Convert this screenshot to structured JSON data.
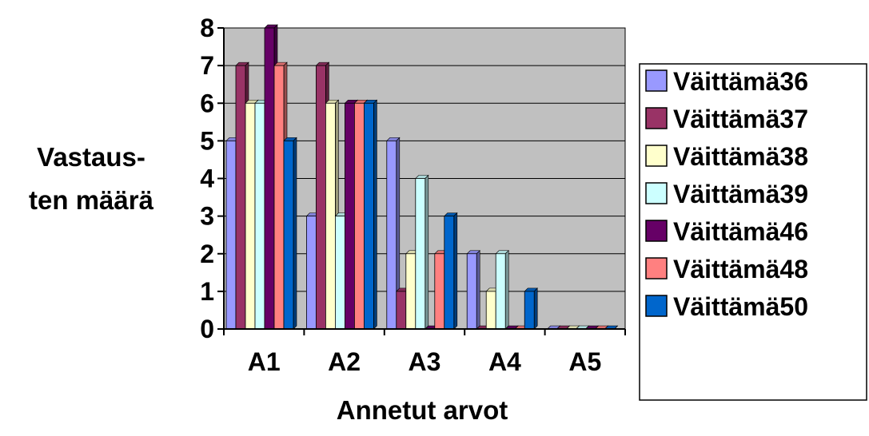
{
  "chart_data": {
    "type": "bar",
    "title": "",
    "xlabel": "Annetut arvot",
    "ylabel_lines": [
      "Vastaus-",
      "ten määrä"
    ],
    "ylim": [
      0,
      8
    ],
    "yticks": [
      "0",
      "1",
      "2",
      "3",
      "4",
      "5",
      "6",
      "7",
      "8"
    ],
    "grid": true,
    "legend_position": "right",
    "categories": [
      "A1",
      "A2",
      "A3",
      "A4",
      "A5"
    ],
    "series": [
      {
        "name": "Väittämä36",
        "color": "#9999FF",
        "values": [
          5,
          3,
          5,
          2,
          0
        ]
      },
      {
        "name": "Väittämä37",
        "color": "#993366",
        "values": [
          7,
          7,
          1,
          0,
          0
        ]
      },
      {
        "name": "Väittämä38",
        "color": "#FFFFCC",
        "values": [
          6,
          6,
          2,
          1,
          0
        ]
      },
      {
        "name": "Väittämä39",
        "color": "#CCFFFF",
        "values": [
          6,
          3,
          4,
          2,
          0
        ]
      },
      {
        "name": "Väittämä46",
        "color": "#660066",
        "values": [
          8,
          6,
          0,
          0,
          0
        ]
      },
      {
        "name": "Väittämä48",
        "color": "#FF8080",
        "values": [
          7,
          6,
          2,
          0,
          0
        ]
      },
      {
        "name": "Väittämä50",
        "color": "#0066CC",
        "values": [
          5,
          6,
          3,
          1,
          0
        ]
      }
    ],
    "plot_background": "#C0C0C0"
  }
}
